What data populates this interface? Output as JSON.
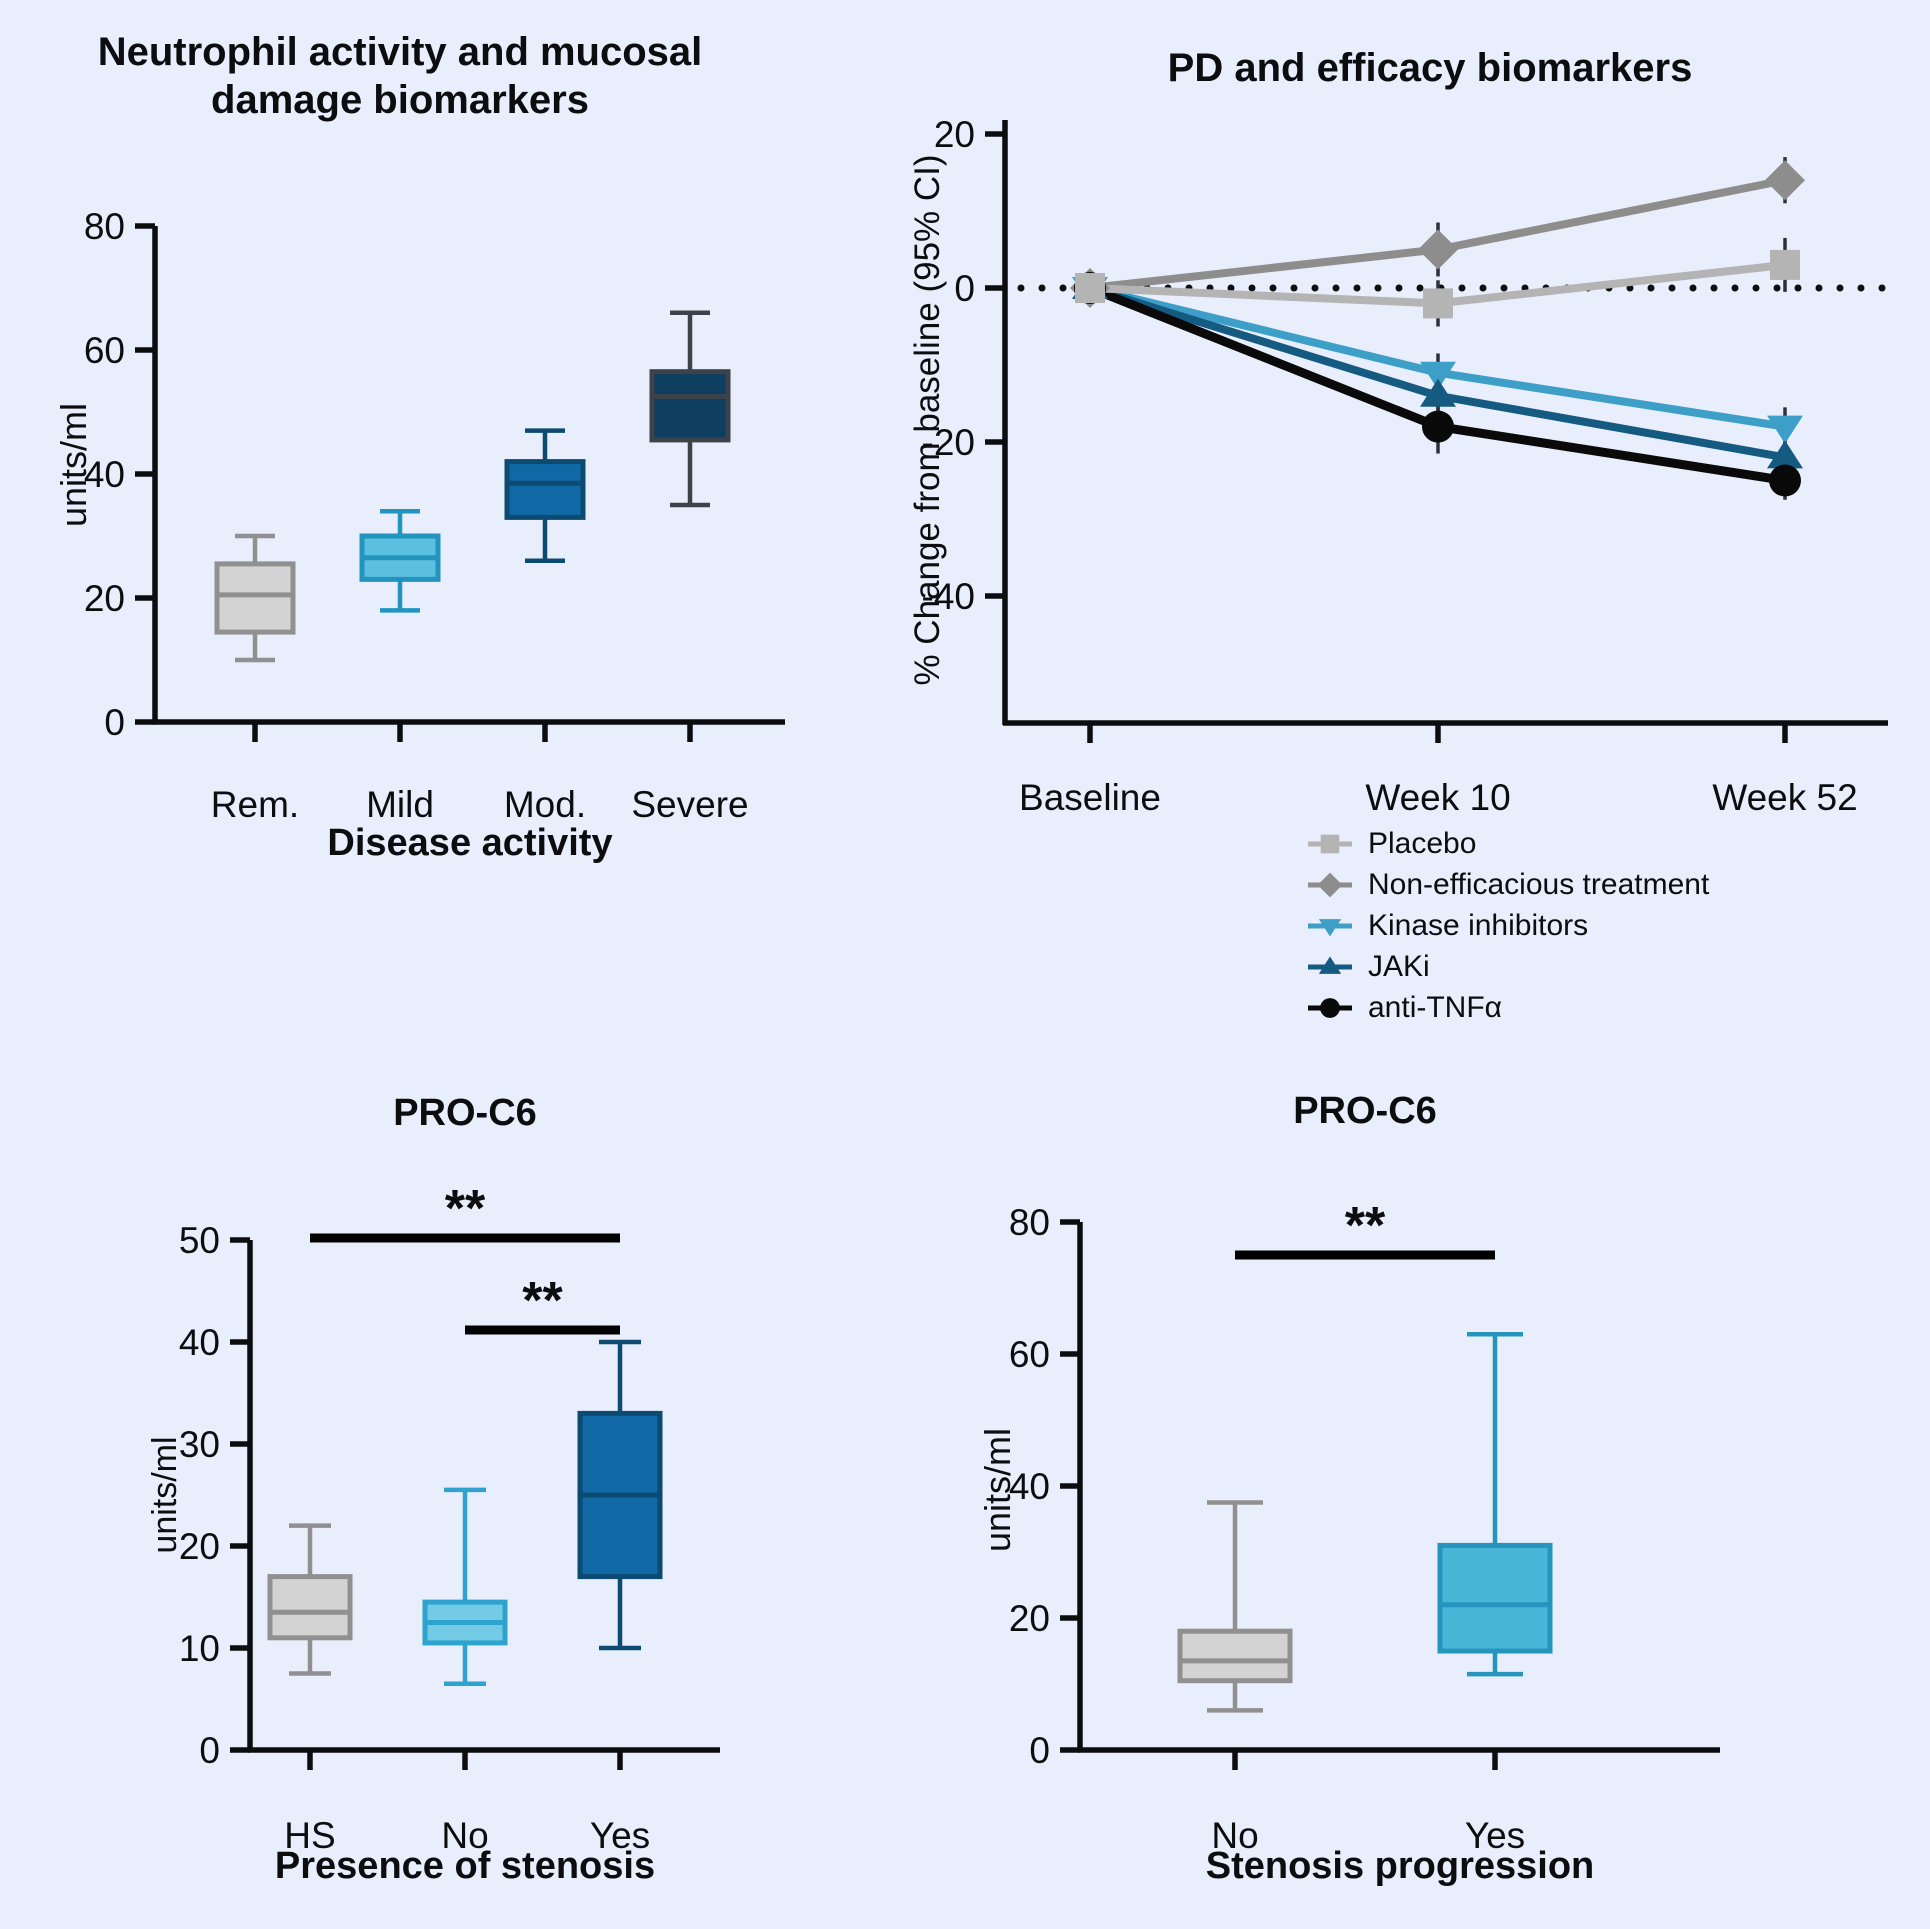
{
  "figure": {
    "background": "#e8eefb",
    "axis_color": "#0b0d0f",
    "error_bar_color": "#2b313a",
    "significance_color": "#000000"
  },
  "chart_data": [
    {
      "type": "box",
      "title_line1": "Neutrophil activity and mucosal",
      "title_line2": "damage biomarkers",
      "ylabel": "units/ml",
      "xlabel": "Disease activity",
      "ylim": [
        0,
        80
      ],
      "yticks": [
        0,
        20,
        40,
        60,
        80
      ],
      "categories": [
        "Rem.",
        "Mild",
        "Mod.",
        "Severe"
      ],
      "boxes": [
        {
          "label": "Rem.",
          "whisker_low": 10,
          "q1": 14.5,
          "median": 20.5,
          "q3": 25.5,
          "whisker_high": 30,
          "fill": "#d3d3d3",
          "stroke": "#909090"
        },
        {
          "label": "Mild",
          "whisker_low": 18,
          "q1": 23,
          "median": 26.5,
          "q3": 30,
          "whisker_high": 34,
          "fill": "#5cc0e0",
          "stroke": "#2294be"
        },
        {
          "label": "Mod.",
          "whisker_low": 26,
          "q1": 33,
          "median": 38.5,
          "q3": 42,
          "whisker_high": 47,
          "fill": "#1068a4",
          "stroke": "#0d4a72"
        },
        {
          "label": "Severe",
          "whisker_low": 35,
          "q1": 45.5,
          "median": 52.5,
          "q3": 56.5,
          "whisker_high": 66,
          "fill": "#0e3f61",
          "stroke": "#3b424a"
        }
      ]
    },
    {
      "type": "line",
      "title": "PD and efficacy biomarkers",
      "ylabel": "% Change from baseline (95% CI)",
      "ylim": [
        -40,
        20
      ],
      "yticks": [
        20,
        0,
        -20,
        -40
      ],
      "x_categories": [
        "Baseline",
        "Week 10",
        "Week 52"
      ],
      "zero_line": true,
      "legend_position": "below",
      "series": [
        {
          "name": "Placebo",
          "marker": "square",
          "color": "#b4b4b4",
          "values": [
            0,
            -2,
            3
          ],
          "ci": [
            0.8,
            3,
            3.5
          ]
        },
        {
          "name": "Non-efficacious treatment",
          "marker": "diamond",
          "color": "#8d8d8d",
          "values": [
            0,
            5,
            14
          ],
          "ci": [
            0.8,
            3.5,
            3
          ]
        },
        {
          "name": "Kinase inhibitors",
          "marker": "triangle-down",
          "color": "#3d9fc8",
          "values": [
            0,
            -11,
            -18
          ],
          "ci": [
            0.8,
            2.5,
            2.5
          ]
        },
        {
          "name": "JAKi",
          "marker": "triangle-up",
          "color": "#155a80",
          "values": [
            0,
            -14,
            -22
          ],
          "ci": [
            0.8,
            2.5,
            2.5
          ]
        },
        {
          "name": "anti-TNFα",
          "marker": "circle",
          "color": "#0a0a0a",
          "values": [
            0,
            -18,
            -25
          ],
          "ci": [
            0.8,
            3.5,
            2.5
          ]
        }
      ]
    },
    {
      "type": "box",
      "title": "PRO-C6",
      "ylabel": "units/ml",
      "xlabel": "Presence of stenosis",
      "ylim": [
        0,
        50
      ],
      "yticks": [
        0,
        10,
        20,
        30,
        40,
        50
      ],
      "categories": [
        "HS",
        "No",
        "Yes"
      ],
      "boxes": [
        {
          "label": "HS",
          "whisker_low": 7.5,
          "q1": 11,
          "median": 13.5,
          "q3": 17,
          "whisker_high": 22,
          "fill": "#d3d3d3",
          "stroke": "#909090"
        },
        {
          "label": "No",
          "whisker_low": 6.5,
          "q1": 10.5,
          "median": 12.5,
          "q3": 14.5,
          "whisker_high": 25.5,
          "fill": "#73cbe6",
          "stroke": "#2da3ce"
        },
        {
          "label": "Yes",
          "whisker_low": 10,
          "q1": 17,
          "median": 25,
          "q3": 33,
          "whisker_high": 40,
          "fill": "#1068a4",
          "stroke": "#0d4a72"
        }
      ],
      "significance": [
        {
          "between": [
            "HS",
            "Yes"
          ],
          "label": "**"
        },
        {
          "between": [
            "No",
            "Yes"
          ],
          "label": "**"
        }
      ]
    },
    {
      "type": "box",
      "title": "PRO-C6",
      "ylabel": "units/ml",
      "xlabel": "Stenosis progression",
      "ylim": [
        0,
        80
      ],
      "yticks": [
        0,
        20,
        40,
        60,
        80
      ],
      "categories": [
        "No",
        "Yes"
      ],
      "boxes": [
        {
          "label": "No",
          "whisker_low": 6,
          "q1": 10.5,
          "median": 13.5,
          "q3": 18,
          "whisker_high": 37.5,
          "fill": "#d3d3d3",
          "stroke": "#909090"
        },
        {
          "label": "Yes",
          "whisker_low": 11.5,
          "q1": 15,
          "median": 22,
          "q3": 31,
          "whisker_high": 63,
          "fill": "#49b6d8",
          "stroke": "#2595bd"
        }
      ],
      "significance": [
        {
          "between": [
            "No",
            "Yes"
          ],
          "label": "**"
        }
      ]
    }
  ]
}
